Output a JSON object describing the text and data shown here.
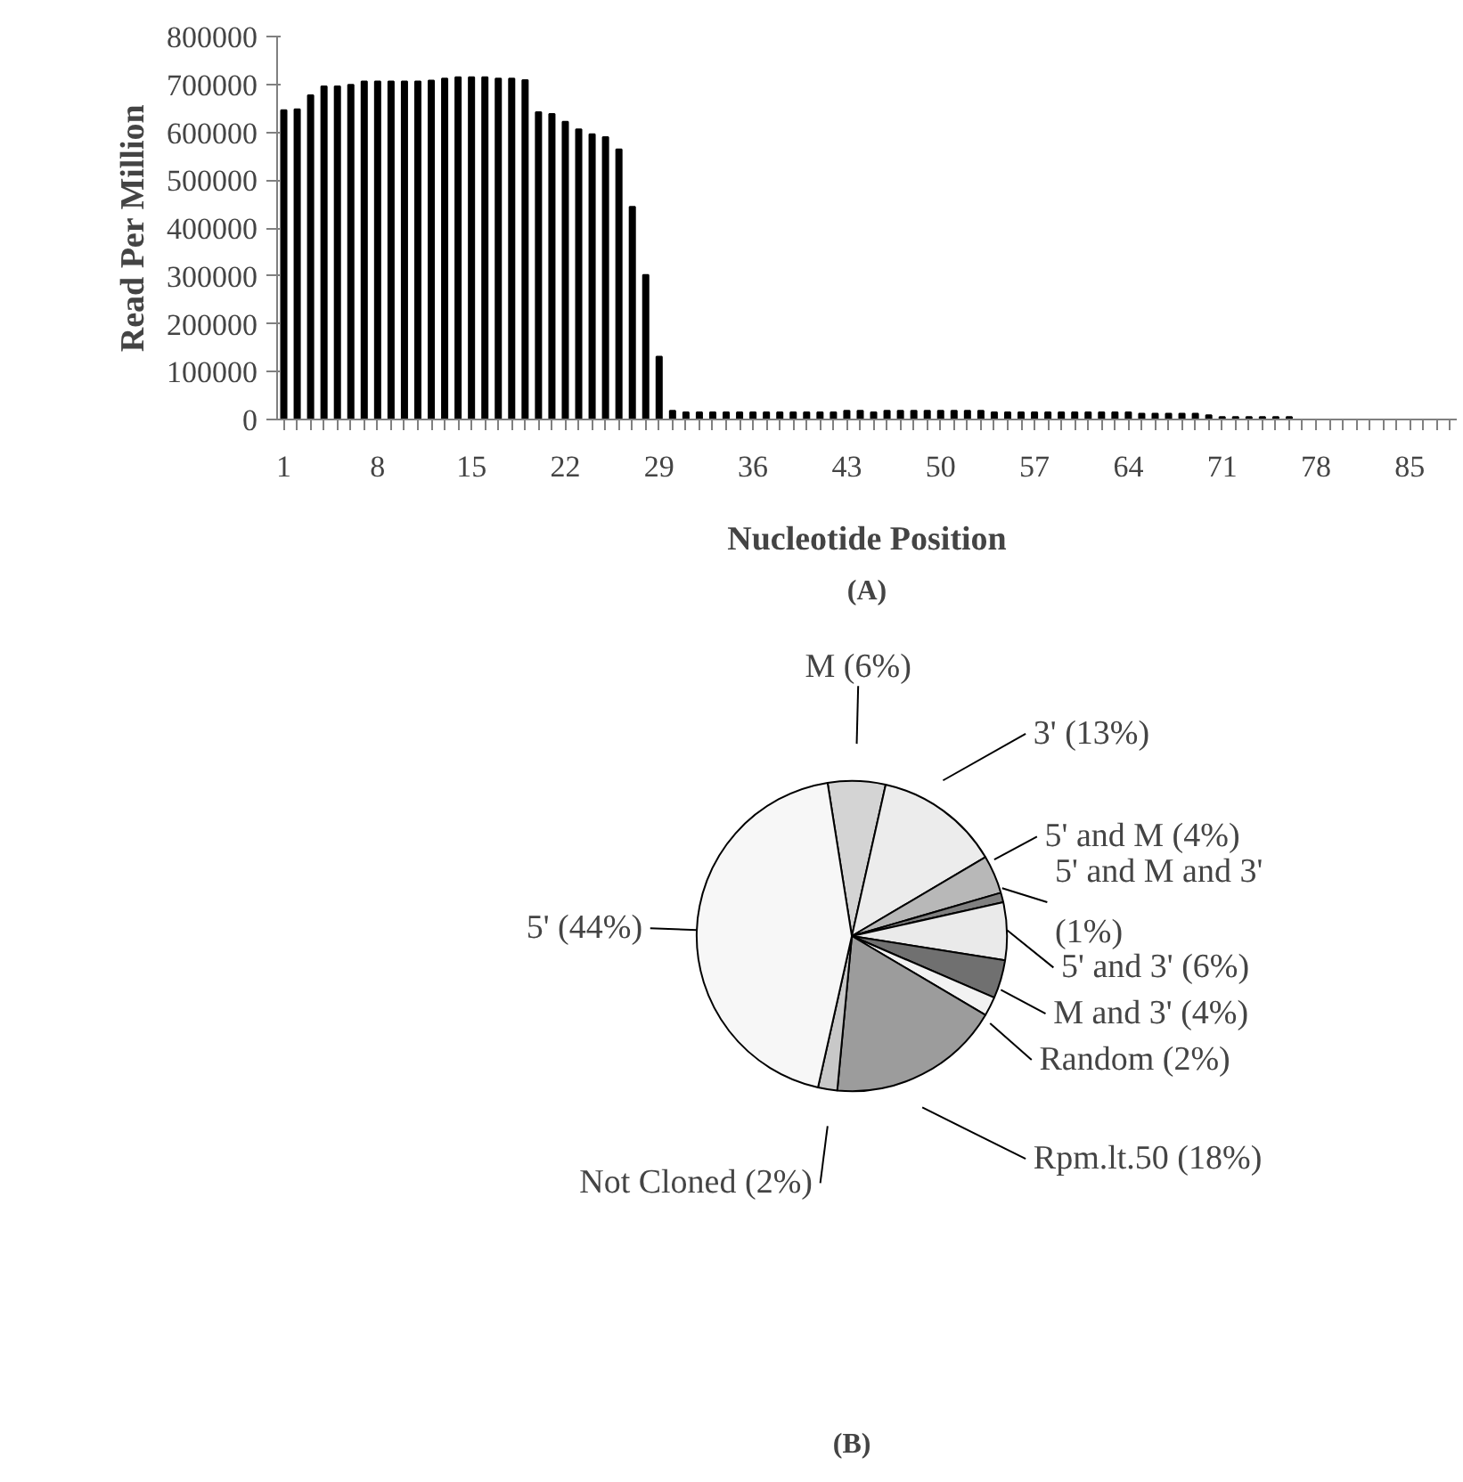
{
  "chart_data": [
    {
      "type": "bar",
      "xlabel": "Nucleotide Position",
      "ylabel": "Read Per Million",
      "annotations": [
        "(A)"
      ],
      "color": "#000000",
      "categories": [
        "1",
        null,
        null,
        null,
        null,
        null,
        null,
        "8",
        null,
        null,
        null,
        null,
        null,
        null,
        "15",
        null,
        null,
        null,
        null,
        null,
        null,
        "22",
        null,
        null,
        null,
        null,
        null,
        null,
        "29",
        null,
        null,
        null,
        null,
        null,
        null,
        "36",
        null,
        null,
        null,
        null,
        null,
        null,
        "43",
        null,
        null,
        null,
        null,
        null,
        null,
        "50",
        null,
        null,
        null,
        null,
        null,
        null,
        "57",
        null,
        null,
        null,
        null,
        null,
        null,
        "64",
        null,
        null,
        null,
        null,
        null,
        null,
        "71",
        null,
        null,
        null,
        null,
        null,
        null,
        "78",
        null,
        null,
        null,
        null,
        null,
        null,
        "85",
        null,
        null,
        null
      ],
      "values": [
        646000,
        648000,
        677000,
        696000,
        696000,
        699000,
        706000,
        706000,
        706000,
        706000,
        706000,
        708000,
        712000,
        715000,
        715000,
        715000,
        712000,
        712000,
        709000,
        642000,
        638000,
        622000,
        606000,
        596000,
        590000,
        564000,
        444000,
        302000,
        131000,
        18000,
        15000,
        15000,
        15000,
        15000,
        15000,
        15000,
        15000,
        15000,
        15000,
        15000,
        15000,
        15000,
        18000,
        18000,
        15000,
        18000,
        18000,
        18000,
        18000,
        18000,
        18000,
        18000,
        18000,
        15000,
        15000,
        15000,
        15000,
        15000,
        15000,
        15000,
        15000,
        15000,
        15000,
        15000,
        12000,
        12000,
        12000,
        12000,
        12000,
        9000,
        5000,
        5000,
        5000,
        5000,
        5000,
        5000,
        0,
        0,
        0,
        0,
        0,
        0,
        0,
        0,
        0,
        0,
        0,
        0
      ],
      "ylim": [
        0,
        800000
      ],
      "yticks": [
        0,
        100000,
        200000,
        300000,
        400000,
        500000,
        600000,
        700000,
        800000
      ],
      "grid": false
    },
    {
      "type": "pie",
      "annotations": [
        "(B)"
      ],
      "categories": [
        "M (6%)",
        "3' (13%)",
        "5' and M (4%)",
        "5' and M and 3'\n(1%)",
        "5' and 3' (6%)",
        "M and 3' (4%)",
        "Random (2%)",
        "Rpm.lt.50 (18%)",
        "Not Cloned (2%)",
        "5' (44%)"
      ],
      "values": [
        6,
        13,
        4,
        1,
        6,
        4,
        2,
        18,
        2,
        44
      ],
      "colors": [
        "#d4d4d4",
        "#ececec",
        "#b8b8b8",
        "#808080",
        "#eaeaea",
        "#707070",
        "#f2f2f2",
        "#9c9c9c",
        "#c8c8c8",
        "#f7f7f7"
      ]
    }
  ]
}
